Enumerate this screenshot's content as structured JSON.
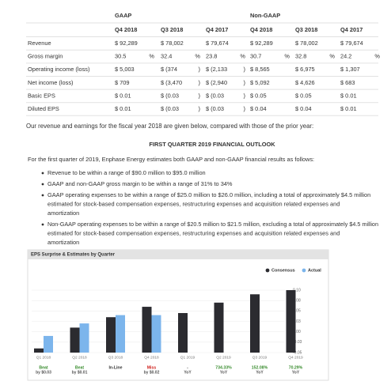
{
  "table": {
    "groups": [
      "GAAP",
      "Non-GAAP"
    ],
    "columns": [
      "Q4 2018",
      "Q3 2018",
      "Q4 2017",
      "Q4 2018",
      "Q3 2018",
      "Q4 2017"
    ],
    "rows": [
      {
        "label": "Revenue",
        "cells": [
          [
            "$ 92,289"
          ],
          [
            "$ 78,002"
          ],
          [
            "$ 79,674"
          ],
          [
            "$ 92,289"
          ],
          [
            "$ 78,002"
          ],
          [
            "$ 79,674"
          ]
        ]
      },
      {
        "label": "Gross margin",
        "cells": [
          [
            "30.5",
            "%"
          ],
          [
            "32.4",
            "%"
          ],
          [
            "23.8",
            "%"
          ],
          [
            "30.7",
            "%"
          ],
          [
            "32.8",
            "%"
          ],
          [
            "24.2",
            "%"
          ]
        ]
      },
      {
        "label": "Operating income (loss)",
        "cells": [
          [
            "$ 5,003"
          ],
          [
            "$ (374",
            ")"
          ],
          [
            "$ (2,133",
            ")"
          ],
          [
            "$ 8,565"
          ],
          [
            "$ 6,975"
          ],
          [
            "$ 1,307"
          ]
        ]
      },
      {
        "label": "Net income (loss)",
        "cells": [
          [
            "$ 709"
          ],
          [
            "$ (3,470",
            ")"
          ],
          [
            "$ (2,940",
            ")"
          ],
          [
            "$ 5,092"
          ],
          [
            "$ 4,626"
          ],
          [
            "$ 683"
          ]
        ]
      },
      {
        "label": "Basic EPS",
        "cells": [
          [
            "$ 0.01"
          ],
          [
            "$ (0.03",
            ")"
          ],
          [
            "$ (0.03",
            ")"
          ],
          [
            "$ 0.05"
          ],
          [
            "$ 0.05"
          ],
          [
            "$ 0.01"
          ]
        ]
      },
      {
        "label": "Diluted EPS",
        "cells": [
          [
            "$ 0.01"
          ],
          [
            "$ (0.03",
            ")"
          ],
          [
            "$ (0.03",
            ")"
          ],
          [
            "$ 0.04"
          ],
          [
            "$ 0.04"
          ],
          [
            "$ 0.01"
          ]
        ]
      }
    ]
  },
  "intro": "Our revenue and earnings for the fiscal year 2018 are given below, compared with those of the prior year:",
  "heading": "FIRST QUARTER 2019 FINANCIAL OUTLOOK",
  "paragraph": "For the first quarter of 2019, Enphase Energy estimates both GAAP and non-GAAP financial results as follows:",
  "bullets": [
    [
      "Revenue to be within a range of $90.0 million to $95.0 million"
    ],
    [
      "GAAP and non-GAAP gross margin to be within a range of 31% to 34%"
    ],
    [
      "GAAP operating expenses to be within a range of $25.0 million to $26.0 million, including a total of approximately $4.5 million",
      "estimated for stock-based compensation expenses, restructuring expenses and acquisition related expenses and",
      "amortization"
    ],
    [
      "Non-GAAP operating expenses to be within a range of $20.5 million to $21.5 million, excluding a total of approximately $4.5 million",
      "estimated for stock-based compensation expenses, restructuring expenses and acquisition related expenses and",
      "amortization"
    ]
  ],
  "chart": {
    "type": "bar",
    "title": "EPS Surprise & Estimates by Quarter",
    "categories": [
      "Q1 2018",
      "Q2 2018",
      "Q3 2018",
      "Q4 2018",
      "Q1 2019",
      "Q2 2019",
      "Q3 2019",
      "Q4 2019"
    ],
    "series": [
      {
        "name": "Consensus",
        "color": "#2b2b30",
        "values": [
          -0.04,
          0.01,
          0.035,
          0.06,
          0.045,
          0.07,
          0.09,
          0.1
        ]
      },
      {
        "name": "Actual",
        "color": "#7cb5ec",
        "values": [
          -0.01,
          0.02,
          0.04,
          0.04,
          null,
          null,
          null,
          null
        ]
      }
    ],
    "ylim": [
      -0.05,
      0.1
    ],
    "yticks": [
      {
        "value": 0.1,
        "label": "0.10"
      },
      {
        "value": 0.075,
        "label": "0.08"
      },
      {
        "value": 0.05,
        "label": "0.05"
      },
      {
        "value": 0.025,
        "label": "0.03"
      },
      {
        "value": 0,
        "label": "0.00"
      },
      {
        "value": -0.025,
        "label": "-0.03"
      },
      {
        "value": -0.05,
        "label": "-0.05"
      }
    ],
    "grid": true,
    "notes": [
      {
        "top": "Beat",
        "bottom": "by $0.03",
        "color": "#3a8d2f"
      },
      {
        "top": "Beat",
        "bottom": "by $0.01",
        "color": "#3a8d2f"
      },
      {
        "top": "In-Line",
        "bottom": null,
        "color": "#333333"
      },
      {
        "top": "Miss",
        "bottom": "by $0.02",
        "color": "#d0201c"
      },
      {
        "top": "-",
        "bottom": "YoY",
        "color": "#555555"
      },
      {
        "top": "734.33%",
        "bottom": "YoY",
        "color": "#3a8d2f"
      },
      {
        "top": "152.08%",
        "bottom": "YoY",
        "color": "#3a8d2f"
      },
      {
        "top": "70.29%",
        "bottom": "YoY",
        "color": "#3a8d2f"
      }
    ]
  }
}
